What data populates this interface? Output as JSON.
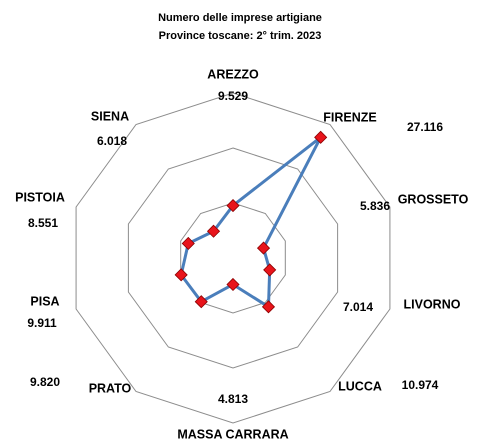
{
  "chart_data": {
    "type": "radar",
    "title": [
      "Numero delle imprese artigiane",
      "Province toscane: 2° trim. 2023"
    ],
    "categories": [
      "AREZZO",
      "FIRENZE",
      "GROSSETO",
      "LIVORNO",
      "LUCCA",
      "MASSA CARRARA",
      "PRATO",
      "PISA",
      "PISTOIA",
      "SIENA"
    ],
    "series": [
      {
        "color": "#4a7ebb",
        "marker_color": "#e8141b",
        "values": [
          9529,
          27116,
          5836,
          7014,
          10974,
          4813,
          9820,
          9911,
          8551,
          6018
        ],
        "value_labels": [
          "9.529",
          "27.116",
          "5.836",
          "7.014",
          "10.974",
          "4.813",
          "9.820",
          "9.911",
          "8.551",
          "6.018"
        ]
      }
    ],
    "ylim": [
      0,
      30000
    ],
    "yticks": [
      0,
      10000,
      20000,
      30000
    ],
    "grid": true
  }
}
